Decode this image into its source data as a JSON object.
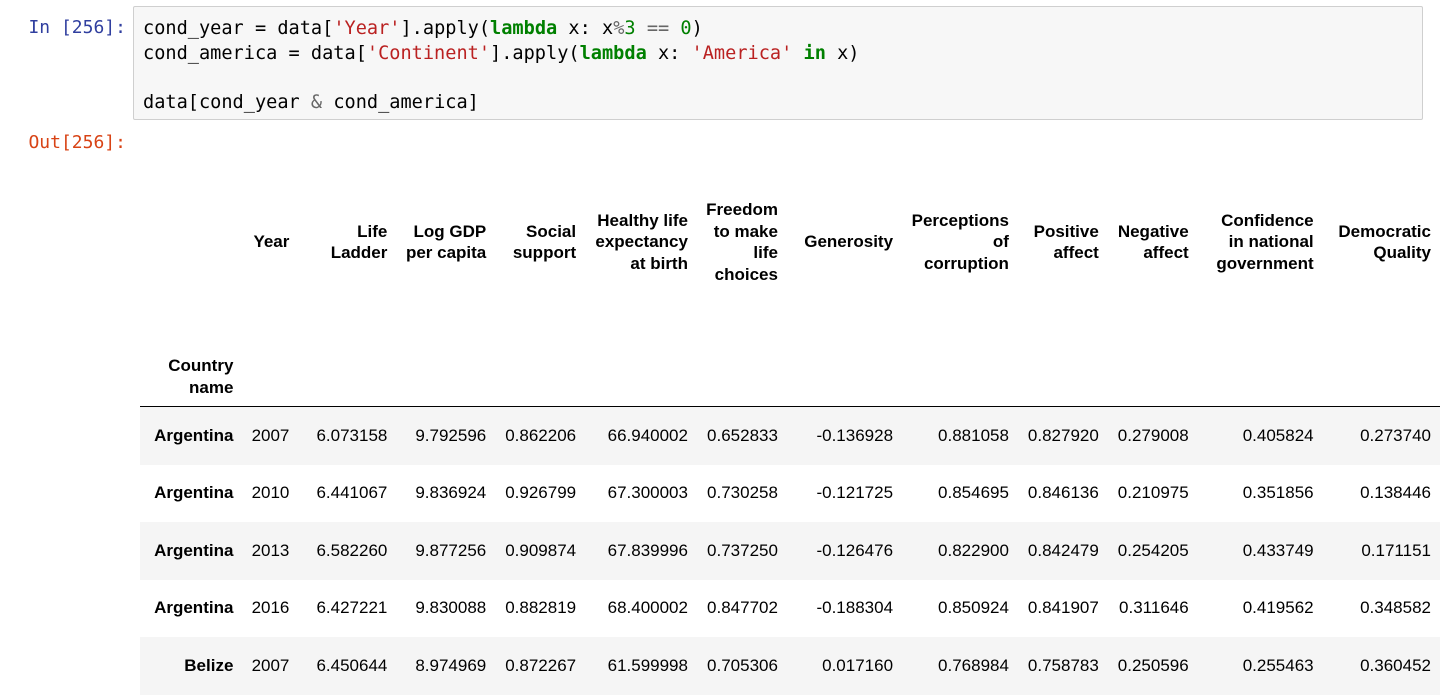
{
  "input_prompt": "In [256]:",
  "output_prompt": "Out[256]:",
  "code_lines": [
    "cond_year = data['Year'].apply(lambda x: x%3 == 0)",
    "cond_america = data['Continent'].apply(lambda x: 'America' in x)",
    "",
    "data[cond_year & cond_america]"
  ],
  "table": {
    "index_header": "Country name",
    "columns": [
      "Year",
      "Life Ladder",
      "Log GDP per capita",
      "Social support",
      "Healthy life expectancy at birth",
      "Freedom to make life choices",
      "Generosity",
      "Perceptions of corruption",
      "Positive affect",
      "Negative affect",
      "Confidence in national government",
      "Democratic Quality"
    ],
    "rows": [
      {
        "country": "Argentina",
        "values": [
          "2007",
          "6.073158",
          "9.792596",
          "0.862206",
          "66.940002",
          "0.652833",
          "-0.136928",
          "0.881058",
          "0.827920",
          "0.279008",
          "0.405824",
          "0.273740"
        ]
      },
      {
        "country": "Argentina",
        "values": [
          "2010",
          "6.441067",
          "9.836924",
          "0.926799",
          "67.300003",
          "0.730258",
          "-0.121725",
          "0.854695",
          "0.846136",
          "0.210975",
          "0.351856",
          "0.138446"
        ]
      },
      {
        "country": "Argentina",
        "values": [
          "2013",
          "6.582260",
          "9.877256",
          "0.909874",
          "67.839996",
          "0.737250",
          "-0.126476",
          "0.822900",
          "0.842479",
          "0.254205",
          "0.433749",
          "0.171151"
        ]
      },
      {
        "country": "Argentina",
        "values": [
          "2016",
          "6.427221",
          "9.830088",
          "0.882819",
          "68.400002",
          "0.847702",
          "-0.188304",
          "0.850924",
          "0.841907",
          "0.311646",
          "0.419562",
          "0.348582"
        ]
      },
      {
        "country": "Belize",
        "values": [
          "2007",
          "6.450644",
          "8.974969",
          "0.872267",
          "61.599998",
          "0.705306",
          "0.017160",
          "0.768984",
          "0.758783",
          "0.250596",
          "0.255463",
          "0.360452"
        ]
      }
    ]
  }
}
